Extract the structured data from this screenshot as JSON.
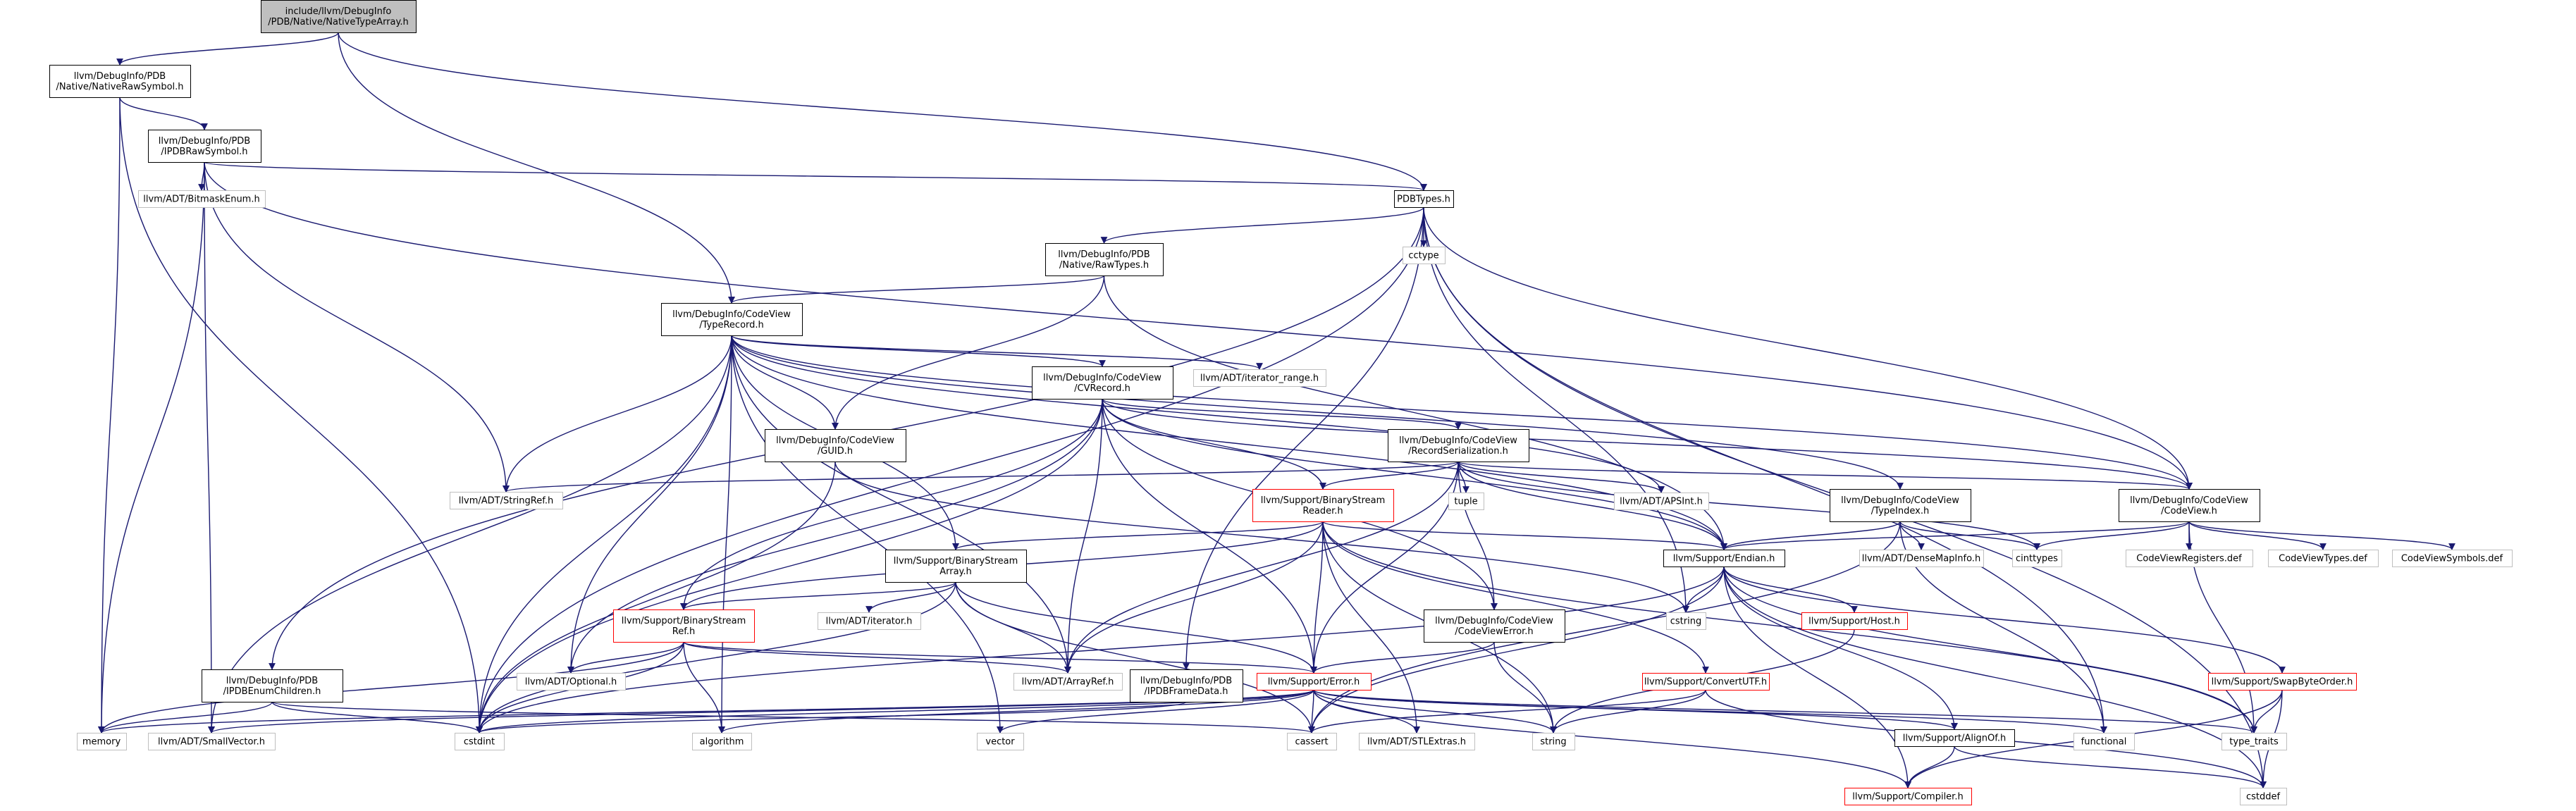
{
  "title": "include/llvm/DebugInfo/PDB/Native/NativeTypeArray.h",
  "colors": {
    "root_fill": "#bfbfbf",
    "node_fill": "#ffffff",
    "black_border": "#000000",
    "red_border": "#ff0000",
    "gray_border": "#bfbfbf",
    "text": "#000000",
    "edge": "#191970"
  },
  "nodes": [
    {
      "id": "root",
      "style": "root",
      "lines": [
        "include/llvm/DebugInfo",
        "/PDB/Native/NativeTypeArray.h"
      ]
    },
    {
      "id": "nativerawsymbol",
      "style": "black",
      "lines": [
        "llvm/DebugInfo/PDB",
        "/Native/NativeRawSymbol.h"
      ]
    },
    {
      "id": "ipdbrawsymbol",
      "style": "black",
      "lines": [
        "llvm/DebugInfo/PDB",
        "/IPDBRawSymbol.h"
      ]
    },
    {
      "id": "bitmaskenum",
      "style": "gray",
      "lines": [
        "llvm/ADT/BitmaskEnum.h"
      ]
    },
    {
      "id": "pdbtypes",
      "style": "black",
      "lines": [
        "PDBTypes.h"
      ]
    },
    {
      "id": "cctype",
      "style": "gray",
      "lines": [
        "cctype"
      ]
    },
    {
      "id": "rawtypes",
      "style": "black",
      "lines": [
        "llvm/DebugInfo/PDB",
        "/Native/RawTypes.h"
      ]
    },
    {
      "id": "typerecord",
      "style": "black",
      "lines": [
        "llvm/DebugInfo/CodeView",
        "/TypeRecord.h"
      ]
    },
    {
      "id": "iterator_range",
      "style": "gray",
      "lines": [
        "llvm/ADT/iterator_range.h"
      ]
    },
    {
      "id": "cvrecord",
      "style": "black",
      "lines": [
        "llvm/DebugInfo/CodeView",
        "/CVRecord.h"
      ]
    },
    {
      "id": "guid",
      "style": "black",
      "lines": [
        "llvm/DebugInfo/CodeView",
        "/GUID.h"
      ]
    },
    {
      "id": "recordserialization",
      "style": "black",
      "lines": [
        "llvm/DebugInfo/CodeView",
        "/RecordSerialization.h"
      ]
    },
    {
      "id": "stringref",
      "style": "gray",
      "lines": [
        "llvm/ADT/StringRef.h"
      ]
    },
    {
      "id": "tuple",
      "style": "gray",
      "lines": [
        "tuple"
      ]
    },
    {
      "id": "apsint",
      "style": "gray",
      "lines": [
        "llvm/ADT/APSInt.h"
      ]
    },
    {
      "id": "codeview",
      "style": "black",
      "lines": [
        "llvm/DebugInfo/CodeView",
        "/CodeView.h"
      ]
    },
    {
      "id": "binarystreamreader",
      "style": "red",
      "lines": [
        "llvm/Support/BinaryStream",
        "Reader.h"
      ]
    },
    {
      "id": "typeindex",
      "style": "black",
      "lines": [
        "llvm/DebugInfo/CodeView",
        "/TypeIndex.h"
      ]
    },
    {
      "id": "cinttypes",
      "style": "gray",
      "lines": [
        "cinttypes"
      ]
    },
    {
      "id": "binarystreamarray",
      "style": "black",
      "lines": [
        "llvm/Support/BinaryStream",
        "Array.h"
      ]
    },
    {
      "id": "endian",
      "style": "black",
      "lines": [
        "llvm/Support/Endian.h"
      ]
    },
    {
      "id": "densemapinfo",
      "style": "gray",
      "lines": [
        "llvm/ADT/DenseMapInfo.h"
      ]
    },
    {
      "id": "codeviewregisters",
      "style": "gray",
      "lines": [
        "CodeViewRegisters.def"
      ]
    },
    {
      "id": "codeviewtypes",
      "style": "gray",
      "lines": [
        "CodeViewTypes.def"
      ]
    },
    {
      "id": "codeviewsymbols",
      "style": "gray",
      "lines": [
        "CodeViewSymbols.def"
      ]
    },
    {
      "id": "adtiterator",
      "style": "gray",
      "lines": [
        "llvm/ADT/iterator.h"
      ]
    },
    {
      "id": "binarystreamref",
      "style": "red",
      "lines": [
        "llvm/Support/BinaryStream",
        "Ref.h"
      ]
    },
    {
      "id": "cstring",
      "style": "gray",
      "lines": [
        "cstring"
      ]
    },
    {
      "id": "host",
      "style": "red",
      "lines": [
        "llvm/Support/Host.h"
      ]
    },
    {
      "id": "codeviewerror",
      "style": "black",
      "lines": [
        "llvm/DebugInfo/CodeView",
        "/CodeViewError.h"
      ]
    },
    {
      "id": "convertutf",
      "style": "red",
      "lines": [
        "llvm/Support/ConvertUTF.h"
      ]
    },
    {
      "id": "swapbyteorder",
      "style": "red",
      "lines": [
        "llvm/Support/SwapByteOrder.h"
      ]
    },
    {
      "id": "ipdbenumchildren",
      "style": "black",
      "lines": [
        "llvm/DebugInfo/PDB",
        "/IPDBEnumChildren.h"
      ]
    },
    {
      "id": "optional",
      "style": "gray",
      "lines": [
        "llvm/ADT/Optional.h"
      ]
    },
    {
      "id": "arrayref",
      "style": "gray",
      "lines": [
        "llvm/ADT/ArrayRef.h"
      ]
    },
    {
      "id": "ipdbframedata",
      "style": "black",
      "lines": [
        "llvm/DebugInfo/PDB",
        "/IPDBFrameData.h"
      ]
    },
    {
      "id": "error",
      "style": "red",
      "lines": [
        "llvm/Support/Error.h"
      ]
    },
    {
      "id": "memory",
      "style": "gray",
      "lines": [
        "memory"
      ]
    },
    {
      "id": "smallvector",
      "style": "gray",
      "lines": [
        "llvm/ADT/SmallVector.h"
      ]
    },
    {
      "id": "cstdint",
      "style": "gray",
      "lines": [
        "cstdint"
      ]
    },
    {
      "id": "algorithm",
      "style": "gray",
      "lines": [
        "algorithm"
      ]
    },
    {
      "id": "vector",
      "style": "gray",
      "lines": [
        "vector"
      ]
    },
    {
      "id": "cassert",
      "style": "gray",
      "lines": [
        "cassert"
      ]
    },
    {
      "id": "stlextras",
      "style": "gray",
      "lines": [
        "llvm/ADT/STLExtras.h"
      ]
    },
    {
      "id": "string",
      "style": "gray",
      "lines": [
        "string"
      ]
    },
    {
      "id": "alignof",
      "style": "black",
      "lines": [
        "llvm/Support/AlignOf.h"
      ]
    },
    {
      "id": "functional",
      "style": "gray",
      "lines": [
        "functional"
      ]
    },
    {
      "id": "type_traits",
      "style": "gray",
      "lines": [
        "type_traits"
      ]
    },
    {
      "id": "cstddef",
      "style": "gray",
      "lines": [
        "cstddef"
      ]
    },
    {
      "id": "compiler",
      "style": "red",
      "lines": [
        "llvm/Support/Compiler.h"
      ]
    }
  ],
  "edges": [
    [
      "root",
      "nativerawsymbol"
    ],
    [
      "root",
      "pdbtypes"
    ],
    [
      "root",
      "typerecord"
    ],
    [
      "nativerawsymbol",
      "ipdbrawsymbol"
    ],
    [
      "nativerawsymbol",
      "memory"
    ],
    [
      "nativerawsymbol",
      "cstdint"
    ],
    [
      "ipdbrawsymbol",
      "pdbtypes"
    ],
    [
      "ipdbrawsymbol",
      "bitmaskenum"
    ],
    [
      "ipdbrawsymbol",
      "stringref"
    ],
    [
      "ipdbrawsymbol",
      "memory"
    ],
    [
      "ipdbrawsymbol",
      "smallvector"
    ],
    [
      "ipdbrawsymbol",
      "codeview"
    ],
    [
      "pdbtypes",
      "cctype"
    ],
    [
      "pdbtypes",
      "rawtypes"
    ],
    [
      "pdbtypes",
      "ipdbenumchildren"
    ],
    [
      "pdbtypes",
      "ipdbframedata"
    ],
    [
      "pdbtypes",
      "codeview"
    ],
    [
      "pdbtypes",
      "cstdint"
    ],
    [
      "pdbtypes",
      "cstring"
    ],
    [
      "pdbtypes",
      "functional"
    ],
    [
      "pdbtypes",
      "cstddef"
    ],
    [
      "rawtypes",
      "typerecord"
    ],
    [
      "rawtypes",
      "guid"
    ],
    [
      "rawtypes",
      "endian"
    ],
    [
      "typerecord",
      "iterator_range"
    ],
    [
      "typerecord",
      "cvrecord"
    ],
    [
      "typerecord",
      "guid"
    ],
    [
      "typerecord",
      "stringref"
    ],
    [
      "typerecord",
      "apsint"
    ],
    [
      "typerecord",
      "codeview"
    ],
    [
      "typerecord",
      "typeindex"
    ],
    [
      "typerecord",
      "binarystreamarray"
    ],
    [
      "typerecord",
      "endian"
    ],
    [
      "typerecord",
      "optional"
    ],
    [
      "typerecord",
      "arrayref"
    ],
    [
      "typerecord",
      "smallvector"
    ],
    [
      "typerecord",
      "cstdint"
    ],
    [
      "typerecord",
      "algorithm"
    ],
    [
      "typerecord",
      "vector"
    ],
    [
      "cvrecord",
      "recordserialization"
    ],
    [
      "cvrecord",
      "binarystreamreader"
    ],
    [
      "cvrecord",
      "codeviewerror"
    ],
    [
      "cvrecord",
      "binarystreamref"
    ],
    [
      "cvrecord",
      "endian"
    ],
    [
      "cvrecord",
      "error"
    ],
    [
      "cvrecord",
      "optional"
    ],
    [
      "cvrecord",
      "arrayref"
    ],
    [
      "cvrecord",
      "cstdint"
    ],
    [
      "cvrecord",
      "codeview"
    ],
    [
      "guid",
      "cstdint"
    ],
    [
      "guid",
      "cstring"
    ],
    [
      "recordserialization",
      "stringref"
    ],
    [
      "recordserialization",
      "tuple"
    ],
    [
      "recordserialization",
      "apsint"
    ],
    [
      "recordserialization",
      "codeview"
    ],
    [
      "recordserialization",
      "binarystreamreader"
    ],
    [
      "recordserialization",
      "codeviewerror"
    ],
    [
      "recordserialization",
      "endian"
    ],
    [
      "recordserialization",
      "error"
    ],
    [
      "recordserialization",
      "arrayref"
    ],
    [
      "recordserialization",
      "cinttypes"
    ],
    [
      "binarystreamreader",
      "binarystreamarray"
    ],
    [
      "binarystreamreader",
      "binarystreamref"
    ],
    [
      "binarystreamreader",
      "endian"
    ],
    [
      "binarystreamreader",
      "convertutf"
    ],
    [
      "binarystreamreader",
      "error"
    ],
    [
      "binarystreamreader",
      "arrayref"
    ],
    [
      "binarystreamreader",
      "stlextras"
    ],
    [
      "binarystreamreader",
      "string"
    ],
    [
      "binarystreamreader",
      "type_traits"
    ],
    [
      "typeindex",
      "endian"
    ],
    [
      "typeindex",
      "densemapinfo"
    ],
    [
      "typeindex",
      "cinttypes"
    ],
    [
      "typeindex",
      "cassert"
    ],
    [
      "typeindex",
      "functional"
    ],
    [
      "codeview",
      "endian"
    ],
    [
      "codeview",
      "codeviewregisters"
    ],
    [
      "codeview",
      "codeviewtypes"
    ],
    [
      "codeview",
      "codeviewsymbols"
    ],
    [
      "codeview",
      "cinttypes"
    ],
    [
      "codeview",
      "type_traits"
    ],
    [
      "binarystreamarray",
      "adtiterator"
    ],
    [
      "binarystreamarray",
      "binarystreamref"
    ],
    [
      "binarystreamarray",
      "arrayref"
    ],
    [
      "binarystreamarray",
      "error"
    ],
    [
      "binarystreamarray",
      "cassert"
    ],
    [
      "binarystreamarray",
      "cstdint"
    ],
    [
      "endian",
      "cstring"
    ],
    [
      "endian",
      "host"
    ],
    [
      "endian",
      "swapbyteorder"
    ],
    [
      "endian",
      "alignof"
    ],
    [
      "endian",
      "compiler"
    ],
    [
      "endian",
      "cassert"
    ],
    [
      "endian",
      "cstdint"
    ],
    [
      "endian",
      "cstddef"
    ],
    [
      "endian",
      "type_traits"
    ],
    [
      "binarystreamref",
      "optional"
    ],
    [
      "binarystreamref",
      "arrayref"
    ],
    [
      "binarystreamref",
      "error"
    ],
    [
      "binarystreamref",
      "algorithm"
    ],
    [
      "binarystreamref",
      "cstdint"
    ],
    [
      "binarystreamref",
      "memory"
    ],
    [
      "host",
      "string"
    ],
    [
      "codeviewerror",
      "error"
    ],
    [
      "codeviewerror",
      "string"
    ],
    [
      "convertutf",
      "string"
    ],
    [
      "convertutf",
      "cstddef"
    ],
    [
      "convertutf",
      "cassert"
    ],
    [
      "swapbyteorder",
      "compiler"
    ],
    [
      "swapbyteorder",
      "cstddef"
    ],
    [
      "swapbyteorder",
      "type_traits"
    ],
    [
      "ipdbenumchildren",
      "cassert"
    ],
    [
      "ipdbenumchildren",
      "cstdint"
    ],
    [
      "ipdbenumchildren",
      "memory"
    ],
    [
      "ipdbframedata",
      "cstdint"
    ],
    [
      "error",
      "stlextras"
    ],
    [
      "error",
      "alignof"
    ],
    [
      "error",
      "compiler"
    ],
    [
      "error",
      "algorithm"
    ],
    [
      "error",
      "cassert"
    ],
    [
      "error",
      "cstdint"
    ],
    [
      "error",
      "functional"
    ],
    [
      "error",
      "memory"
    ],
    [
      "error",
      "string"
    ],
    [
      "error",
      "type_traits"
    ],
    [
      "error",
      "vector"
    ],
    [
      "error",
      "smallvector"
    ],
    [
      "alignof",
      "compiler"
    ],
    [
      "alignof",
      "cstddef"
    ]
  ]
}
